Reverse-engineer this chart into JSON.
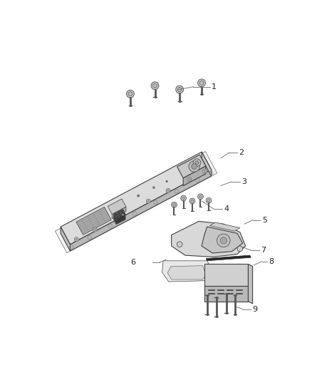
{
  "bg_color": "#ffffff",
  "line_color": "#404040",
  "fill_top": "#e0e0e0",
  "fill_side": "#c8c8c8",
  "fill_dark": "#b0b0b0",
  "fill_light": "#eeeeee",
  "figsize": [
    4.38,
    5.33
  ],
  "dpi": 100
}
